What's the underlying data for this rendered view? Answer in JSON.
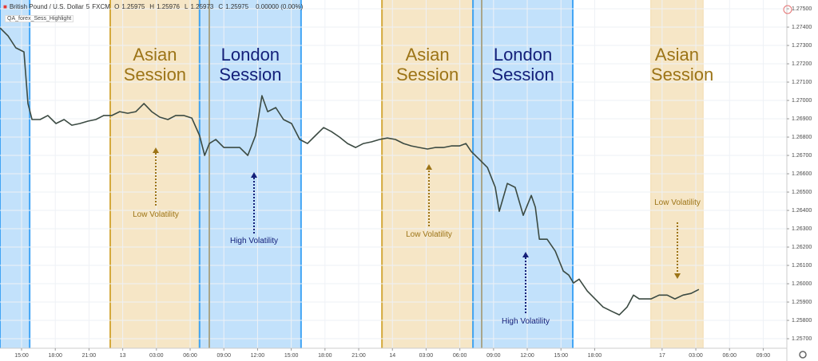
{
  "header": {
    "symbol": "British Pound / U.S. Dollar",
    "interval": "5",
    "source": "FXCM",
    "ohlc": [
      {
        "label": "O",
        "value": "1.25975"
      },
      {
        "label": "H",
        "value": "1.25976"
      },
      {
        "label": "L",
        "value": "1.25973"
      },
      {
        "label": "C",
        "value": "1.25975"
      }
    ],
    "change": "0.00000 (0.00%)",
    "indicator": "QA_forex_Sess_Highlight"
  },
  "chart_data": {
    "type": "line",
    "color": "#3b4a42",
    "grid": true,
    "xlim": [
      -0.64,
      22.7
    ],
    "ylim": [
      1.25648,
      1.27548
    ],
    "xticks": [
      {
        "value": 0,
        "label": "15:00"
      },
      {
        "value": 1,
        "label": "18:00"
      },
      {
        "value": 2,
        "label": "21:00"
      },
      {
        "value": 3,
        "label": "13"
      },
      {
        "value": 4,
        "label": "03:00"
      },
      {
        "value": 5,
        "label": "06:00"
      },
      {
        "value": 6,
        "label": "09:00"
      },
      {
        "value": 7,
        "label": "12:00"
      },
      {
        "value": 8,
        "label": "15:00"
      },
      {
        "value": 9,
        "label": "18:00"
      },
      {
        "value": 10,
        "label": "21:00"
      },
      {
        "value": 11,
        "label": "14"
      },
      {
        "value": 12,
        "label": "03:00"
      },
      {
        "value": 13,
        "label": "06:00"
      },
      {
        "value": 14,
        "label": "09:00"
      },
      {
        "value": 15,
        "label": "12:00"
      },
      {
        "value": 16,
        "label": "15:00"
      },
      {
        "value": 17,
        "label": "18:00"
      },
      {
        "value": 19,
        "label": "17"
      },
      {
        "value": 20,
        "label": "03:00"
      },
      {
        "value": 21,
        "label": "06:00"
      },
      {
        "value": 22,
        "label": "09:00"
      }
    ],
    "yticks": [
      {
        "value": 1.257,
        "label": "1.25700"
      },
      {
        "value": 1.258,
        "label": "1.25800"
      },
      {
        "value": 1.259,
        "label": "1.25900"
      },
      {
        "value": 1.26,
        "label": "1.26000"
      },
      {
        "value": 1.261,
        "label": "1.26100"
      },
      {
        "value": 1.262,
        "label": "1.26200"
      },
      {
        "value": 1.263,
        "label": "1.26300"
      },
      {
        "value": 1.264,
        "label": "1.26400"
      },
      {
        "value": 1.265,
        "label": "1.26500"
      },
      {
        "value": 1.266,
        "label": "1.26600"
      },
      {
        "value": 1.267,
        "label": "1.26700"
      },
      {
        "value": 1.268,
        "label": "1.26800"
      },
      {
        "value": 1.269,
        "label": "1.26900"
      },
      {
        "value": 1.27,
        "label": "1.27000"
      },
      {
        "value": 1.271,
        "label": "1.27100"
      },
      {
        "value": 1.272,
        "label": "1.27200"
      },
      {
        "value": 1.273,
        "label": "1.27300"
      },
      {
        "value": 1.274,
        "label": "1.27400"
      },
      {
        "value": 1.275,
        "label": "1.27500"
      }
    ],
    "x": [
      -0.64,
      -0.4,
      -0.17,
      0.07,
      0.19,
      0.31,
      0.55,
      0.78,
      1.02,
      1.26,
      1.49,
      1.73,
      1.97,
      2.2,
      2.44,
      2.68,
      2.91,
      3.15,
      3.39,
      3.63,
      3.86,
      4.1,
      4.34,
      4.57,
      4.81,
      5.05,
      5.28,
      5.43,
      5.57,
      5.76,
      6.0,
      6.23,
      6.47,
      6.71,
      6.94,
      7.13,
      7.3,
      7.54,
      7.77,
      8.01,
      8.25,
      8.48,
      8.72,
      8.96,
      9.19,
      9.43,
      9.67,
      9.91,
      10.14,
      10.38,
      10.62,
      10.85,
      11.09,
      11.33,
      11.56,
      11.8,
      12.04,
      12.27,
      12.51,
      12.75,
      12.99,
      13.18,
      13.34,
      13.58,
      13.82,
      14.05,
      14.17,
      14.41,
      14.64,
      14.88,
      15.12,
      15.24,
      15.36,
      15.59,
      15.83,
      16.07,
      16.23,
      16.37,
      16.54,
      16.78,
      17.01,
      17.25,
      17.49,
      17.73,
      17.96,
      18.15,
      18.32,
      18.46,
      18.67,
      18.91,
      19.15,
      19.38,
      19.62,
      19.86,
      20.09
    ],
    "values": [
      1.27396,
      1.27352,
      1.27287,
      1.27265,
      1.26983,
      1.26896,
      1.26896,
      1.26918,
      1.26874,
      1.26896,
      1.26865,
      1.26874,
      1.26887,
      1.26896,
      1.26918,
      1.26918,
      1.26939,
      1.2693,
      1.26939,
      1.26983,
      1.26939,
      1.26909,
      1.26896,
      1.26918,
      1.26918,
      1.26904,
      1.26809,
      1.267,
      1.26765,
      1.26787,
      1.26743,
      1.26743,
      1.26743,
      1.267,
      1.26809,
      1.27026,
      1.26939,
      1.26961,
      1.26896,
      1.26874,
      1.26787,
      1.26765,
      1.26809,
      1.26852,
      1.2683,
      1.268,
      1.26765,
      1.26743,
      1.26765,
      1.26774,
      1.26787,
      1.26795,
      1.26787,
      1.26765,
      1.26752,
      1.26743,
      1.26735,
      1.26743,
      1.26743,
      1.26752,
      1.26752,
      1.26765,
      1.26721,
      1.26678,
      1.26634,
      1.26526,
      1.26395,
      1.26547,
      1.26526,
      1.26373,
      1.26482,
      1.26417,
      1.26243,
      1.26243,
      1.26178,
      1.26069,
      1.26047,
      1.26004,
      1.26025,
      1.2596,
      1.25917,
      1.25873,
      1.25851,
      1.2583,
      1.25873,
      1.25938,
      1.25917,
      1.25917,
      1.25917,
      1.25938,
      1.25938,
      1.25917,
      1.25938,
      1.25947,
      1.25969
    ],
    "sessions": [
      {
        "start": -0.64,
        "end": 0.24,
        "fill": "#bbdefb",
        "edge": "#42a5f5"
      },
      {
        "label": "Asian Session",
        "start": 2.63,
        "end": 5.28,
        "fill": "#f5e3c0",
        "edge": "#d4a93c",
        "text_color": "#9c7417"
      },
      {
        "label": "London Session",
        "start": 5.28,
        "end": 8.29,
        "fill": "#bbdefb",
        "edge": "#42a5f5",
        "text_color": "#14207a"
      },
      {
        "label": "Asian Session",
        "start": 10.69,
        "end": 13.39,
        "fill": "#f5e3c0",
        "edge": "#d4a93c",
        "text_color": "#9c7417"
      },
      {
        "label": "London Session",
        "start": 13.39,
        "end": 16.35,
        "fill": "#bbdefb",
        "edge": "#42a5f5",
        "text_color": "#14207a"
      },
      {
        "label": "Asian Session",
        "start": 18.67,
        "end": 20.21,
        "fill": "#f5e3c0",
        "edge": "#f5e3c0",
        "text_color": "#9c7417"
      }
    ],
    "annotations": [
      {
        "text": "Low Volatility",
        "color": "#9c7417"
      },
      {
        "text": "High Volatility",
        "color": "#14207a"
      },
      {
        "text": "Low Volatility",
        "color": "#9c7417"
      },
      {
        "text": "High Volatility",
        "color": "#14207a"
      },
      {
        "text": "Low Volatility",
        "color": "#9c7417"
      }
    ]
  }
}
